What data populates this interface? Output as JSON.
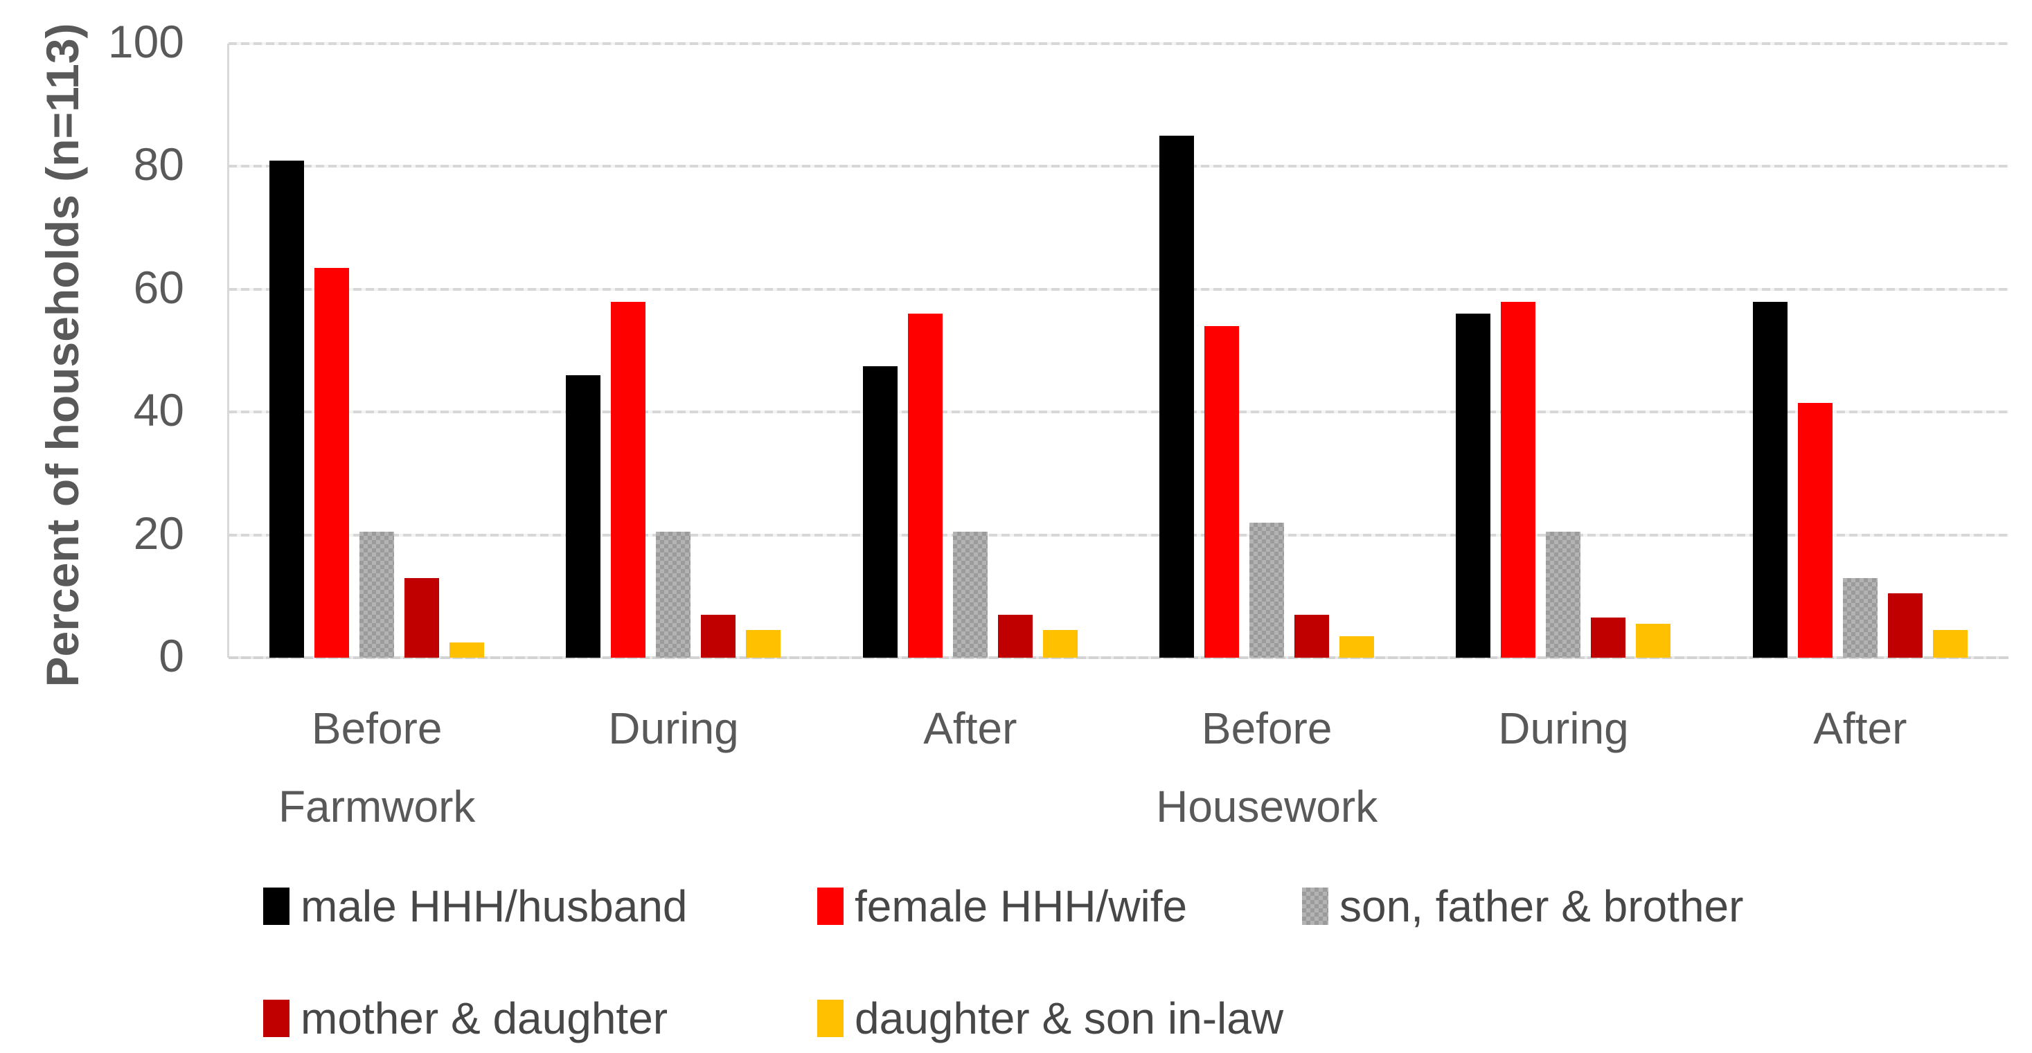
{
  "chart_data": {
    "type": "bar",
    "title": "",
    "xlabel": "",
    "ylabel": "Percent of households (n=113)",
    "ylim": [
      0,
      100
    ],
    "yticks": [
      0,
      20,
      40,
      60,
      80,
      100
    ],
    "grid": true,
    "legend_position": "bottom",
    "categories": [
      "Before",
      "During",
      "After",
      "Before",
      "During",
      "After"
    ],
    "group_labels": [
      {
        "label": "Farmwork",
        "slot": 0
      },
      {
        "label": "Housework",
        "slot": 3
      }
    ],
    "series": [
      {
        "name": "male HHH/husband",
        "color": "#000000",
        "pattern": "solid",
        "values": [
          81,
          46,
          47.5,
          85,
          56,
          58
        ]
      },
      {
        "name": "female HHH/wife",
        "color": "#FF0000",
        "pattern": "solid",
        "values": [
          63.5,
          58,
          56,
          54,
          58,
          41.5
        ]
      },
      {
        "name": "son, father & brother",
        "color": "#A6A6A6",
        "pattern": "checker",
        "values": [
          20.5,
          20.5,
          20.5,
          22,
          20.5,
          13
        ]
      },
      {
        "name": "mother & daughter",
        "color": "#C00000",
        "pattern": "solid",
        "values": [
          13,
          7,
          7,
          7,
          6.5,
          10.5
        ]
      },
      {
        "name": "daughter & son in-law",
        "color": "#FFC000",
        "pattern": "solid",
        "values": [
          2.5,
          4.5,
          4.5,
          3.5,
          5.5,
          4.5
        ]
      }
    ],
    "legend_rows": [
      [
        "male HHH/husband",
        "female HHH/wife",
        "son, father & brother"
      ],
      [
        "mother & daughter",
        "daughter & son in-law"
      ]
    ]
  }
}
